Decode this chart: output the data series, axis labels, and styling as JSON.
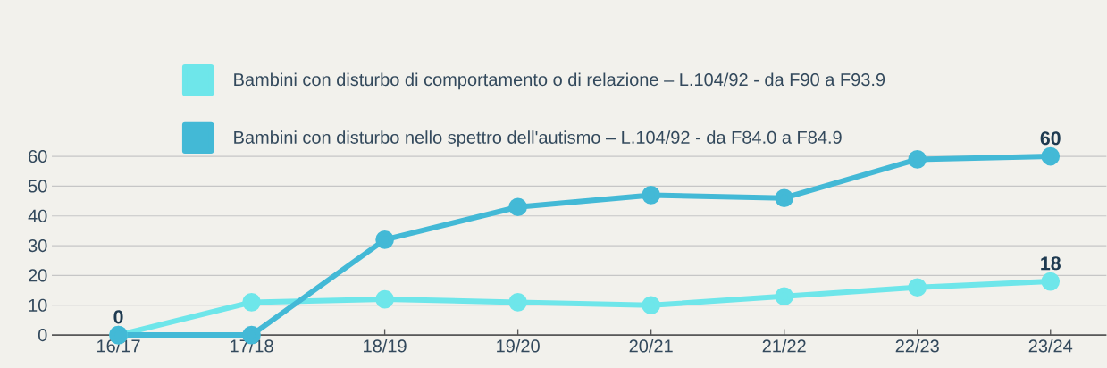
{
  "chart_data": {
    "type": "line",
    "categories": [
      "16/17",
      "17/18",
      "18/19",
      "19/20",
      "20/21",
      "21/22",
      "22/23",
      "23/24"
    ],
    "series": [
      {
        "name": "Bambini con disturbo di comportamento o di relazione – L.104/92 - da F90 a F93.9",
        "color": "#6ee6ea",
        "values": [
          0,
          11,
          12,
          11,
          10,
          13,
          16,
          18
        ],
        "value_labels": [
          null,
          null,
          null,
          null,
          null,
          null,
          null,
          "18"
        ]
      },
      {
        "name": "Bambini con disturbo nello spettro dell'autismo – L.104/92 - da F84.0 a F84.9",
        "color": "#43b9d6",
        "values": [
          0,
          0,
          32,
          43,
          47,
          46,
          59,
          60
        ],
        "value_labels": [
          "0",
          null,
          null,
          null,
          null,
          null,
          null,
          "60"
        ]
      }
    ],
    "ylim": [
      0,
      60
    ],
    "yticks": [
      0,
      10,
      20,
      30,
      40,
      50,
      60
    ],
    "grid": "y",
    "legend": "top",
    "marker": "circle",
    "line_style": "solid"
  }
}
